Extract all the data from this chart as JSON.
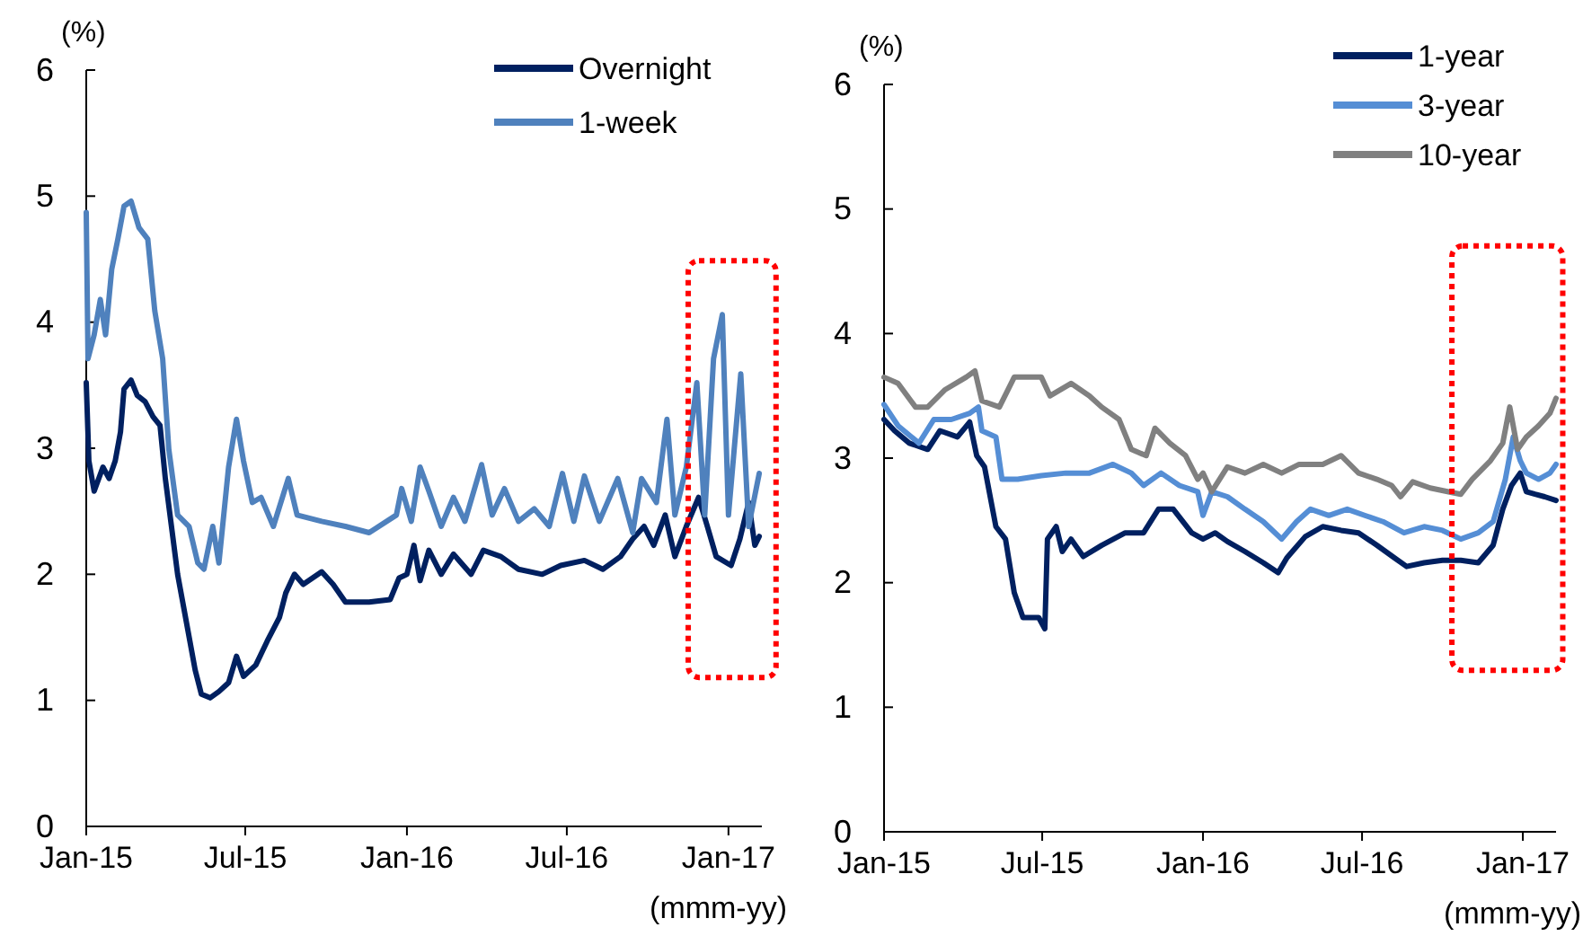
{
  "chart_data": [
    {
      "type": "line",
      "ylabel": "(%)",
      "xlabel": "(mmm-yy)",
      "xlim": [
        "2015-01-01",
        "2017-02-08"
      ],
      "ylim": [
        0,
        6
      ],
      "yticks": [
        0,
        1,
        2,
        3,
        4,
        5,
        6
      ],
      "xticks": [
        {
          "value": "2015-01-01",
          "label": "Jan-15"
        },
        {
          "value": "2015-07-01",
          "label": "Jul-15"
        },
        {
          "value": "2016-01-01",
          "label": "Jan-16"
        },
        {
          "value": "2016-07-01",
          "label": "Jul-16"
        },
        {
          "value": "2017-01-01",
          "label": "Jan-17"
        }
      ],
      "legend": "top right",
      "line_style": "solid",
      "marker": "none",
      "series": [
        {
          "name": "Overnight",
          "color": "#002060",
          "x": [
            "2015-01-01",
            "2015-01-04",
            "2015-01-10",
            "2015-01-20",
            "2015-01-27",
            "2015-02-03",
            "2015-02-09",
            "2015-02-13",
            "2015-02-21",
            "2015-02-28",
            "2015-03-09",
            "2015-03-18",
            "2015-03-26",
            "2015-04-01",
            "2015-04-08",
            "2015-04-15",
            "2015-04-25",
            "2015-05-05",
            "2015-05-12",
            "2015-05-22",
            "2015-06-01",
            "2015-06-12",
            "2015-06-21",
            "2015-06-29",
            "2015-07-13",
            "2015-07-26",
            "2015-08-09",
            "2015-08-16",
            "2015-08-26",
            "2015-09-05",
            "2015-09-26",
            "2015-10-09",
            "2015-10-23",
            "2015-11-19",
            "2015-12-13",
            "2015-12-23",
            "2016-01-01",
            "2016-01-09",
            "2016-01-16",
            "2016-01-26",
            "2016-02-09",
            "2016-02-23",
            "2016-03-14",
            "2016-03-28",
            "2016-04-17",
            "2016-05-07",
            "2016-06-03",
            "2016-06-24",
            "2016-07-21",
            "2016-08-11",
            "2016-08-31",
            "2016-09-14",
            "2016-09-27",
            "2016-10-08",
            "2016-10-21",
            "2016-11-01",
            "2016-11-14",
            "2016-11-28",
            "2016-12-08",
            "2016-12-18",
            "2017-01-04",
            "2017-01-14",
            "2017-01-24",
            "2017-01-31",
            "2017-02-05"
          ],
          "values": [
            3.52,
            2.9,
            2.66,
            2.85,
            2.76,
            2.9,
            3.13,
            3.47,
            3.54,
            3.42,
            3.37,
            3.25,
            3.18,
            2.76,
            2.38,
            2.0,
            1.62,
            1.24,
            1.05,
            1.02,
            1.07,
            1.14,
            1.35,
            1.19,
            1.28,
            1.47,
            1.66,
            1.85,
            2.0,
            1.92,
            2.02,
            1.92,
            1.78,
            1.78,
            1.8,
            1.97,
            2.0,
            2.23,
            1.95,
            2.19,
            2.0,
            2.16,
            2.0,
            2.19,
            2.14,
            2.04,
            2.0,
            2.07,
            2.11,
            2.04,
            2.14,
            2.28,
            2.38,
            2.23,
            2.47,
            2.14,
            2.38,
            2.61,
            2.38,
            2.14,
            2.07,
            2.28,
            2.57,
            2.23,
            2.3
          ]
        },
        {
          "name": "1-week",
          "color": "#4f81bd",
          "x": [
            "2015-01-01",
            "2015-01-03",
            "2015-01-10",
            "2015-01-17",
            "2015-01-23",
            "2015-01-30",
            "2015-02-06",
            "2015-02-13",
            "2015-02-21",
            "2015-03-02",
            "2015-03-12",
            "2015-03-20",
            "2015-03-29",
            "2015-04-05",
            "2015-04-15",
            "2015-04-28",
            "2015-05-08",
            "2015-05-15",
            "2015-05-25",
            "2015-06-01",
            "2015-06-12",
            "2015-06-21",
            "2015-06-29",
            "2015-07-09",
            "2015-07-19",
            "2015-08-02",
            "2015-08-19",
            "2015-08-29",
            "2015-09-26",
            "2015-10-23",
            "2015-11-19",
            "2015-12-20",
            "2015-12-26",
            "2016-01-06",
            "2016-01-16",
            "2016-01-26",
            "2016-02-09",
            "2016-02-23",
            "2016-03-07",
            "2016-03-26",
            "2016-04-07",
            "2016-04-21",
            "2016-05-07",
            "2016-05-25",
            "2016-06-11",
            "2016-06-26",
            "2016-07-09",
            "2016-07-21",
            "2016-08-07",
            "2016-08-28",
            "2016-09-14",
            "2016-09-24",
            "2016-10-11",
            "2016-10-23",
            "2016-11-01",
            "2016-11-14",
            "2016-11-26",
            "2016-12-05",
            "2016-12-15",
            "2016-12-25",
            "2017-01-01",
            "2017-01-15",
            "2017-01-24",
            "2017-02-05"
          ],
          "values": [
            4.87,
            3.71,
            3.9,
            4.18,
            3.9,
            4.42,
            4.66,
            4.92,
            4.96,
            4.75,
            4.66,
            4.09,
            3.71,
            2.99,
            2.47,
            2.38,
            2.09,
            2.04,
            2.38,
            2.09,
            2.85,
            3.23,
            2.9,
            2.57,
            2.61,
            2.38,
            2.76,
            2.47,
            2.42,
            2.38,
            2.33,
            2.47,
            2.68,
            2.42,
            2.85,
            2.66,
            2.38,
            2.61,
            2.42,
            2.87,
            2.47,
            2.68,
            2.42,
            2.52,
            2.38,
            2.8,
            2.42,
            2.78,
            2.42,
            2.76,
            2.33,
            2.76,
            2.57,
            3.23,
            2.47,
            2.85,
            3.52,
            2.47,
            3.71,
            4.06,
            2.47,
            3.59,
            2.38,
            2.8
          ]
        }
      ]
    },
    {
      "type": "line",
      "ylabel": "(%)",
      "xlabel": "(mmm-yy)",
      "xlim": [
        "2015-01-01",
        "2017-02-08"
      ],
      "ylim": [
        0,
        6
      ],
      "yticks": [
        0,
        1,
        2,
        3,
        4,
        5,
        6
      ],
      "xticks": [
        {
          "value": "2015-01-01",
          "label": "Jan-15"
        },
        {
          "value": "2015-07-01",
          "label": "Jul-15"
        },
        {
          "value": "2016-01-01",
          "label": "Jan-16"
        },
        {
          "value": "2016-07-01",
          "label": "Jul-16"
        },
        {
          "value": "2017-01-01",
          "label": "Jan-17"
        }
      ],
      "legend": "top right",
      "line_style": "solid",
      "marker": "none",
      "series": [
        {
          "name": "1-year",
          "color": "#002060",
          "x": [
            "2015-01-01",
            "2015-01-13",
            "2015-01-30",
            "2015-02-20",
            "2015-03-06",
            "2015-03-26",
            "2015-04-09",
            "2015-04-17",
            "2015-04-26",
            "2015-05-09",
            "2015-05-20",
            "2015-05-30",
            "2015-06-09",
            "2015-06-27",
            "2015-07-04",
            "2015-07-07",
            "2015-07-17",
            "2015-07-24",
            "2015-08-03",
            "2015-08-17",
            "2015-09-07",
            "2015-10-04",
            "2015-10-25",
            "2015-11-11",
            "2015-11-28",
            "2015-12-19",
            "2016-01-01",
            "2016-01-15",
            "2016-01-29",
            "2016-02-18",
            "2016-03-10",
            "2016-03-27",
            "2016-04-06",
            "2016-04-27",
            "2016-05-17",
            "2016-06-07",
            "2016-06-27",
            "2016-07-18",
            "2016-08-07",
            "2016-08-21",
            "2016-09-10",
            "2016-10-01",
            "2016-10-22",
            "2016-11-11",
            "2016-11-28",
            "2016-12-09",
            "2016-12-19",
            "2016-12-29",
            "2017-01-05",
            "2017-01-15",
            "2017-01-26",
            "2017-02-08"
          ],
          "values": [
            3.31,
            3.22,
            3.12,
            3.07,
            3.22,
            3.17,
            3.29,
            3.02,
            2.93,
            2.45,
            2.35,
            1.92,
            1.72,
            1.72,
            1.63,
            2.35,
            2.45,
            2.25,
            2.35,
            2.21,
            2.3,
            2.4,
            2.4,
            2.59,
            2.59,
            2.4,
            2.35,
            2.4,
            2.33,
            2.25,
            2.16,
            2.08,
            2.2,
            2.37,
            2.45,
            2.42,
            2.4,
            2.3,
            2.2,
            2.13,
            2.16,
            2.18,
            2.18,
            2.16,
            2.3,
            2.59,
            2.78,
            2.88,
            2.73,
            2.71,
            2.69,
            2.66
          ]
        },
        {
          "name": "3-year",
          "color": "#558ed5",
          "x": [
            "2015-01-01",
            "2015-01-17",
            "2015-02-10",
            "2015-02-27",
            "2015-03-19",
            "2015-04-09",
            "2015-04-19",
            "2015-04-23",
            "2015-05-09",
            "2015-05-16",
            "2015-06-03",
            "2015-06-30",
            "2015-07-28",
            "2015-08-24",
            "2015-09-20",
            "2015-10-11",
            "2015-10-25",
            "2015-11-14",
            "2015-12-05",
            "2015-12-26",
            "2016-01-01",
            "2016-01-11",
            "2016-01-29",
            "2016-02-18",
            "2016-03-10",
            "2016-03-31",
            "2016-04-17",
            "2016-05-03",
            "2016-05-24",
            "2016-06-14",
            "2016-07-04",
            "2016-07-25",
            "2016-08-18",
            "2016-09-10",
            "2016-10-01",
            "2016-10-22",
            "2016-11-11",
            "2016-11-28",
            "2016-12-12",
            "2016-12-21",
            "2016-12-29",
            "2017-01-05",
            "2017-01-19",
            "2017-02-01",
            "2017-02-08"
          ],
          "values": [
            3.43,
            3.26,
            3.12,
            3.31,
            3.31,
            3.36,
            3.41,
            3.22,
            3.17,
            2.83,
            2.83,
            2.86,
            2.88,
            2.88,
            2.95,
            2.88,
            2.78,
            2.88,
            2.78,
            2.73,
            2.54,
            2.73,
            2.69,
            2.59,
            2.49,
            2.35,
            2.49,
            2.59,
            2.54,
            2.59,
            2.54,
            2.49,
            2.4,
            2.45,
            2.42,
            2.35,
            2.4,
            2.49,
            2.83,
            3.17,
            2.98,
            2.88,
            2.83,
            2.88,
            2.95
          ]
        },
        {
          "name": "10-year",
          "color": "#808080",
          "x": [
            "2015-01-01",
            "2015-01-17",
            "2015-02-06",
            "2015-02-20",
            "2015-03-12",
            "2015-04-05",
            "2015-04-15",
            "2015-04-23",
            "2015-05-13",
            "2015-05-30",
            "2015-06-30",
            "2015-07-10",
            "2015-08-03",
            "2015-08-24",
            "2015-09-07",
            "2015-09-27",
            "2015-10-11",
            "2015-10-28",
            "2015-11-07",
            "2015-11-24",
            "2015-12-12",
            "2015-12-26",
            "2016-01-01",
            "2016-01-11",
            "2016-01-29",
            "2016-02-18",
            "2016-03-10",
            "2016-03-31",
            "2016-04-20",
            "2016-05-17",
            "2016-06-07",
            "2016-06-27",
            "2016-07-18",
            "2016-08-04",
            "2016-08-14",
            "2016-08-28",
            "2016-09-17",
            "2016-10-08",
            "2016-10-22",
            "2016-11-04",
            "2016-11-25",
            "2016-12-09",
            "2016-12-17",
            "2016-12-26",
            "2017-01-05",
            "2017-01-19",
            "2017-02-01",
            "2017-02-08"
          ],
          "values": [
            3.65,
            3.6,
            3.41,
            3.41,
            3.55,
            3.65,
            3.7,
            3.46,
            3.41,
            3.65,
            3.65,
            3.5,
            3.6,
            3.5,
            3.41,
            3.31,
            3.07,
            3.02,
            3.24,
            3.12,
            3.02,
            2.83,
            2.88,
            2.73,
            2.93,
            2.88,
            2.95,
            2.88,
            2.95,
            2.95,
            3.02,
            2.88,
            2.83,
            2.78,
            2.69,
            2.81,
            2.76,
            2.73,
            2.71,
            2.83,
            2.98,
            3.12,
            3.41,
            3.07,
            3.17,
            3.26,
            3.36,
            3.48
          ]
        }
      ]
    }
  ]
}
